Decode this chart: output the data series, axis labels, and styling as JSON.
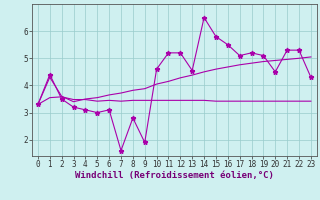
{
  "title": "",
  "xlabel": "Windchill (Refroidissement éolien,°C)",
  "ylabel": "",
  "bg_color": "#cff0f0",
  "line_color": "#aa00aa",
  "grid_color": "#99cccc",
  "axis_color": "#555555",
  "x_values": [
    0,
    1,
    2,
    3,
    4,
    5,
    6,
    7,
    8,
    9,
    10,
    11,
    12,
    13,
    14,
    15,
    16,
    17,
    18,
    19,
    20,
    21,
    22,
    23
  ],
  "line1": [
    3.3,
    4.4,
    3.5,
    3.2,
    3.1,
    3.0,
    3.1,
    1.6,
    2.8,
    1.9,
    4.6,
    5.2,
    5.2,
    4.55,
    6.5,
    5.8,
    5.5,
    5.1,
    5.2,
    5.1,
    4.5,
    5.3,
    5.3,
    4.3
  ],
  "line2": [
    3.3,
    4.3,
    3.6,
    3.4,
    3.5,
    3.55,
    3.65,
    3.72,
    3.82,
    3.88,
    4.05,
    4.15,
    4.28,
    4.38,
    4.5,
    4.6,
    4.68,
    4.76,
    4.82,
    4.88,
    4.92,
    4.96,
    5.0,
    5.05
  ],
  "line3": [
    3.3,
    3.55,
    3.58,
    3.48,
    3.48,
    3.42,
    3.45,
    3.42,
    3.45,
    3.45,
    3.45,
    3.45,
    3.45,
    3.45,
    3.45,
    3.42,
    3.42,
    3.42,
    3.42,
    3.42,
    3.42,
    3.42,
    3.42,
    3.42
  ],
  "ylim": [
    1.4,
    7.0
  ],
  "yticks": [
    2,
    3,
    4,
    5,
    6
  ],
  "xticks": [
    0,
    1,
    2,
    3,
    4,
    5,
    6,
    7,
    8,
    9,
    10,
    11,
    12,
    13,
    14,
    15,
    16,
    17,
    18,
    19,
    20,
    21,
    22,
    23
  ],
  "marker": "*",
  "markersize": 3.5,
  "linewidth": 0.8,
  "tick_fontsize": 5.5,
  "label_fontsize": 6.5
}
